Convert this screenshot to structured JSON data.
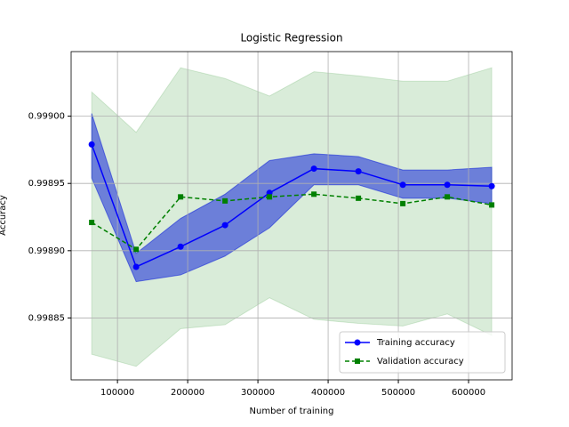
{
  "chart_data": {
    "type": "line",
    "title": "Logistic Regression",
    "xlabel": "Number of training",
    "ylabel": "Accuracy",
    "x": [
      63300,
      126600,
      189900,
      253200,
      316500,
      379800,
      443100,
      506400,
      569700,
      633000
    ],
    "series": [
      {
        "name": "Training accuracy",
        "color": "#0000ff",
        "marker": "circle",
        "dashed": false,
        "values": [
          0.998979,
          0.998888,
          0.998903,
          0.998919,
          0.998943,
          0.998961,
          0.998959,
          0.998949,
          0.998949,
          0.998948
        ],
        "upper": [
          0.999002,
          0.998898,
          0.998924,
          0.998942,
          0.998967,
          0.998972,
          0.99897,
          0.99896,
          0.99896,
          0.998962
        ],
        "lower": [
          0.998954,
          0.998877,
          0.998882,
          0.998896,
          0.998917,
          0.998949,
          0.998949,
          0.998939,
          0.998939,
          0.998935
        ],
        "band_opacity": 0.5
      },
      {
        "name": "Validation accuracy",
        "color": "#008000",
        "marker": "square",
        "dashed": true,
        "values": [
          0.998921,
          0.998901,
          0.99894,
          0.998937,
          0.99894,
          0.998942,
          0.998939,
          0.998935,
          0.99894,
          0.998934
        ],
        "upper": [
          0.999018,
          0.998988,
          0.999036,
          0.999028,
          0.999015,
          0.999033,
          0.99903,
          0.999026,
          0.999026,
          0.999036
        ],
        "lower": [
          0.998823,
          0.998814,
          0.998842,
          0.998845,
          0.998865,
          0.998849,
          0.998846,
          0.998844,
          0.998853,
          0.998837
        ],
        "band_opacity": 0.15
      }
    ],
    "xlim": [
      34000,
      662000
    ],
    "ylim": [
      0.998804,
      0.999048
    ],
    "xticks": [
      100000,
      200000,
      300000,
      400000,
      500000,
      600000
    ],
    "yticks": [
      {
        "value": 0.99885,
        "label": "0.99885"
      },
      {
        "value": 0.9989,
        "label": "0.99890"
      },
      {
        "value": 0.99895,
        "label": "0.99895"
      },
      {
        "value": 0.999,
        "label": "0.99900"
      }
    ],
    "grid": true,
    "legend": "lower right"
  }
}
